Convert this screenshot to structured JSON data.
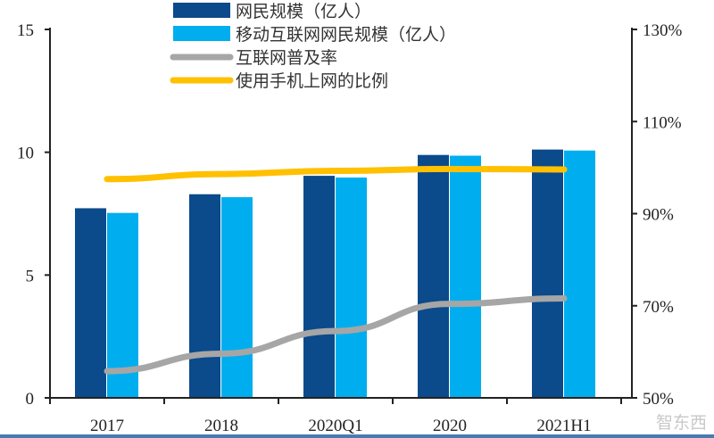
{
  "chart_data": {
    "type": "bar",
    "title": "",
    "categories": [
      "2017",
      "2018",
      "2020Q1",
      "2020",
      "2021H1"
    ],
    "series": [
      {
        "name": "网民规模（亿人）",
        "kind": "bar",
        "axis": "left",
        "color": "#0b4a8b",
        "values": [
          7.72,
          8.29,
          9.04,
          9.89,
          10.11
        ]
      },
      {
        "name": "移动互联网网民规模（亿人）",
        "kind": "bar",
        "axis": "left",
        "color": "#00aeef",
        "values": [
          7.53,
          8.17,
          8.97,
          9.86,
          10.07
        ]
      },
      {
        "name": "互联网普及率",
        "kind": "line",
        "axis": "right",
        "color": "#a6a6a6",
        "values": [
          55.8,
          59.6,
          64.5,
          70.4,
          71.6
        ]
      },
      {
        "name": "使用手机上网的比例",
        "kind": "line",
        "axis": "right",
        "color": "#ffc000",
        "values": [
          97.5,
          98.6,
          99.3,
          99.7,
          99.6
        ]
      }
    ],
    "y_left": {
      "range": [
        0,
        15
      ],
      "ticks": [
        "0",
        "5",
        "10",
        "15"
      ]
    },
    "y_right": {
      "range": [
        50,
        130
      ],
      "unit": "%",
      "ticks": [
        "50%",
        "70%",
        "90%",
        "110%",
        "130%"
      ]
    },
    "grid": false,
    "legend_placement": "top-center"
  },
  "watermark": "智东西"
}
